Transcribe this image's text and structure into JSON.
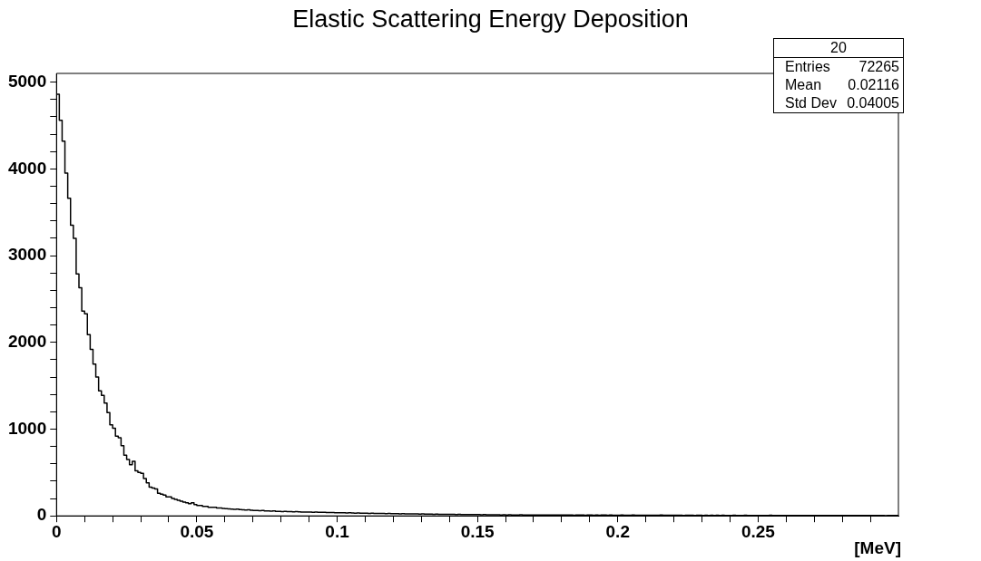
{
  "chart_data": {
    "type": "histogram",
    "title": "Elastic Scattering Energy Deposition",
    "xlabel": "[MeV]",
    "annotations": [
      "20",
      "Entries",
      "72265",
      "Mean",
      "0.02116",
      "Std Dev",
      "0.04005"
    ],
    "color": "#000000",
    "bins": [
      0,
      0.001,
      0.002,
      0.003,
      0.004,
      0.005,
      0.006,
      0.007,
      0.008,
      0.009,
      0.01,
      0.011,
      0.012,
      0.013,
      0.014,
      0.015,
      0.016,
      0.017,
      0.018,
      0.019,
      0.02,
      0.021,
      0.022,
      0.023,
      0.024,
      0.025,
      0.026,
      0.027,
      0.028,
      0.029,
      0.03,
      0.031,
      0.032,
      0.033,
      0.034,
      0.035,
      0.036,
      0.037,
      0.038,
      0.039,
      0.04,
      0.041,
      0.042,
      0.043,
      0.044,
      0.045,
      0.046,
      0.047,
      0.048,
      0.049,
      0.05,
      0.051,
      0.052,
      0.053,
      0.054,
      0.055,
      0.056,
      0.057,
      0.058,
      0.059,
      0.06,
      0.061,
      0.062,
      0.063,
      0.064,
      0.065,
      0.066,
      0.067,
      0.068,
      0.069,
      0.07,
      0.071,
      0.072,
      0.073,
      0.074,
      0.075,
      0.076,
      0.077,
      0.078,
      0.079,
      0.08,
      0.081,
      0.082,
      0.083,
      0.084,
      0.085,
      0.086,
      0.087,
      0.088,
      0.089,
      0.09,
      0.091,
      0.092,
      0.093,
      0.094,
      0.095,
      0.096,
      0.097,
      0.098,
      0.099,
      0.1,
      0.101,
      0.102,
      0.103,
      0.104,
      0.105,
      0.106,
      0.107,
      0.108,
      0.109,
      0.11,
      0.111,
      0.112,
      0.113,
      0.114,
      0.115,
      0.116,
      0.117,
      0.118,
      0.119,
      0.12,
      0.121,
      0.122,
      0.123,
      0.124,
      0.125,
      0.126,
      0.127,
      0.128,
      0.129,
      0.13,
      0.131,
      0.132,
      0.133,
      0.134,
      0.135,
      0.136,
      0.137,
      0.138,
      0.139,
      0.14,
      0.141,
      0.142,
      0.143,
      0.144,
      0.145,
      0.146,
      0.147,
      0.148,
      0.149,
      0.15,
      0.151,
      0.152,
      0.153,
      0.154,
      0.155,
      0.156,
      0.157,
      0.158,
      0.159,
      0.16,
      0.161,
      0.162,
      0.163,
      0.164,
      0.165,
      0.166,
      0.167,
      0.168,
      0.169,
      0.17,
      0.171,
      0.172,
      0.173,
      0.174,
      0.175,
      0.176,
      0.177,
      0.178,
      0.179,
      0.18,
      0.181,
      0.182,
      0.183,
      0.184,
      0.185,
      0.186,
      0.187,
      0.188,
      0.189,
      0.19,
      0.191,
      0.192,
      0.193,
      0.194,
      0.195,
      0.196,
      0.197,
      0.198,
      0.199,
      0.2,
      0.201,
      0.202,
      0.203,
      0.204,
      0.205,
      0.206,
      0.207,
      0.208,
      0.209,
      0.21,
      0.211,
      0.212,
      0.213,
      0.214,
      0.215,
      0.216,
      0.217,
      0.218,
      0.219,
      0.22,
      0.221,
      0.222,
      0.223,
      0.224,
      0.225,
      0.226,
      0.227,
      0.228,
      0.229,
      0.23,
      0.231,
      0.232,
      0.233,
      0.234,
      0.235,
      0.236,
      0.237,
      0.238,
      0.239,
      0.24,
      0.241,
      0.242,
      0.243,
      0.244,
      0.245,
      0.246,
      0.247,
      0.248,
      0.249,
      0.25,
      0.251,
      0.252,
      0.253,
      0.254,
      0.255,
      0.256,
      0.257,
      0.258,
      0.259,
      0.26,
      0.261,
      0.262,
      0.263,
      0.264,
      0.265,
      0.266,
      0.267,
      0.268,
      0.269,
      0.27,
      0.271,
      0.272,
      0.273,
      0.274,
      0.275,
      0.276,
      0.277,
      0.278,
      0.279,
      0.28,
      0.281,
      0.282,
      0.283,
      0.284,
      0.285,
      0.286,
      0.287,
      0.288,
      0.289,
      0.29,
      0.291,
      0.292,
      0.293,
      0.294,
      0.295,
      0.296,
      0.297,
      0.298,
      0.299,
      0.3
    ],
    "values": [
      4860,
      4560,
      4320,
      3950,
      3660,
      3350,
      3200,
      2790,
      2630,
      2360,
      2330,
      2090,
      1920,
      1750,
      1600,
      1440,
      1390,
      1300,
      1190,
      1050,
      1010,
      920,
      900,
      810,
      700,
      650,
      590,
      630,
      520,
      500,
      490,
      430,
      380,
      330,
      320,
      310,
      260,
      250,
      240,
      220,
      220,
      200,
      190,
      180,
      170,
      160,
      150,
      140,
      150,
      130,
      120,
      120,
      110,
      110,
      100,
      100,
      100,
      90,
      90,
      85,
      82,
      80,
      78,
      75,
      77,
      72,
      70,
      68,
      70,
      65,
      63,
      62,
      60,
      61,
      58,
      57,
      55,
      56,
      53,
      52,
      50,
      51,
      49,
      48,
      47,
      48,
      46,
      45,
      44,
      45,
      43,
      42,
      43,
      41,
      40,
      41,
      39,
      38,
      39,
      37,
      36,
      37,
      35,
      34,
      35,
      33,
      32,
      33,
      31,
      30,
      31,
      29,
      30,
      28,
      29,
      27,
      28,
      26,
      27,
      25,
      26,
      25,
      24,
      25,
      23,
      24,
      22,
      23,
      22,
      21,
      22,
      20,
      21,
      20,
      19,
      20,
      18,
      19,
      18,
      17,
      18,
      17,
      16,
      17,
      16,
      15,
      16,
      15,
      14,
      15,
      14,
      13,
      14,
      13,
      12,
      13,
      12,
      13,
      11,
      12,
      11,
      12,
      11,
      10,
      11,
      12,
      10,
      11,
      10,
      11,
      10,
      11,
      10,
      9,
      10,
      11,
      9,
      10,
      9,
      10,
      9,
      10,
      9,
      10,
      8,
      9,
      10,
      9,
      8,
      9,
      9,
      8,
      9,
      8,
      9,
      10,
      8,
      9,
      8,
      8,
      8,
      9,
      8,
      7,
      8,
      9,
      8,
      7,
      8,
      8,
      7,
      8,
      7,
      8,
      7,
      9,
      7,
      8,
      7,
      7,
      7,
      8,
      7,
      6,
      7,
      8,
      7,
      6,
      7,
      7,
      6,
      7,
      6,
      7,
      6,
      8,
      6,
      7,
      6,
      6,
      6,
      7,
      6,
      5,
      6,
      7,
      6,
      5,
      6,
      6,
      6,
      5,
      6,
      5,
      7,
      5,
      6,
      5,
      6,
      5,
      5,
      6,
      5,
      5,
      6,
      4,
      5,
      6,
      5,
      5,
      5,
      4,
      5,
      5,
      6,
      4,
      5,
      4,
      5,
      5,
      4,
      5,
      4,
      5,
      4,
      6,
      4,
      5,
      4,
      4,
      4,
      5,
      4,
      4,
      5,
      3,
      4,
      5,
      4,
      6
    ],
    "xlim": [
      0,
      0.3
    ],
    "xticks": [
      0,
      {
        "value": 0.01,
        "label": null
      },
      {
        "value": 0.02,
        "label": null
      },
      {
        "value": 0.03,
        "label": null
      },
      {
        "value": 0.04,
        "label": null
      },
      0.05,
      {
        "value": 0.06,
        "label": null
      },
      {
        "value": 0.07,
        "label": null
      },
      {
        "value": 0.08,
        "label": null
      },
      {
        "value": 0.09,
        "label": null
      },
      0.1,
      {
        "value": 0.11,
        "label": null
      },
      {
        "value": 0.12,
        "label": null
      },
      {
        "value": 0.13,
        "label": null
      },
      {
        "value": 0.14,
        "label": null
      },
      0.15,
      {
        "value": 0.16,
        "label": null
      },
      {
        "value": 0.17,
        "label": null
      },
      {
        "value": 0.18,
        "label": null
      },
      {
        "value": 0.19,
        "label": null
      },
      0.2,
      {
        "value": 0.21,
        "label": null
      },
      {
        "value": 0.22,
        "label": null
      },
      {
        "value": 0.23,
        "label": null
      },
      {
        "value": 0.24,
        "label": null
      },
      0.25,
      {
        "value": 0.26,
        "label": null
      },
      {
        "value": 0.27,
        "label": null
      },
      {
        "value": 0.28,
        "label": null
      },
      {
        "value": 0.29,
        "label": null
      }
    ],
    "ylim": [
      0,
      5100
    ],
    "yticks": [
      0,
      {
        "value": 200,
        "label": null
      },
      {
        "value": 400,
        "label": null
      },
      {
        "value": 600,
        "label": null
      },
      {
        "value": 800,
        "label": null
      },
      1000,
      {
        "value": 1200,
        "label": null
      },
      {
        "value": 1400,
        "label": null
      },
      {
        "value": 1600,
        "label": null
      },
      {
        "value": 1800,
        "label": null
      },
      2000,
      {
        "value": 2200,
        "label": null
      },
      {
        "value": 2400,
        "label": null
      },
      {
        "value": 2600,
        "label": null
      },
      {
        "value": 2800,
        "label": null
      },
      3000,
      {
        "value": 3200,
        "label": null
      },
      {
        "value": 3400,
        "label": null
      },
      {
        "value": 3600,
        "label": null
      },
      {
        "value": 3800,
        "label": null
      },
      4000,
      {
        "value": 4200,
        "label": null
      },
      {
        "value": 4400,
        "label": null
      },
      {
        "value": 4600,
        "label": null
      },
      {
        "value": 4800,
        "label": null
      },
      5000
    ],
    "grid": false,
    "legend": false
  }
}
